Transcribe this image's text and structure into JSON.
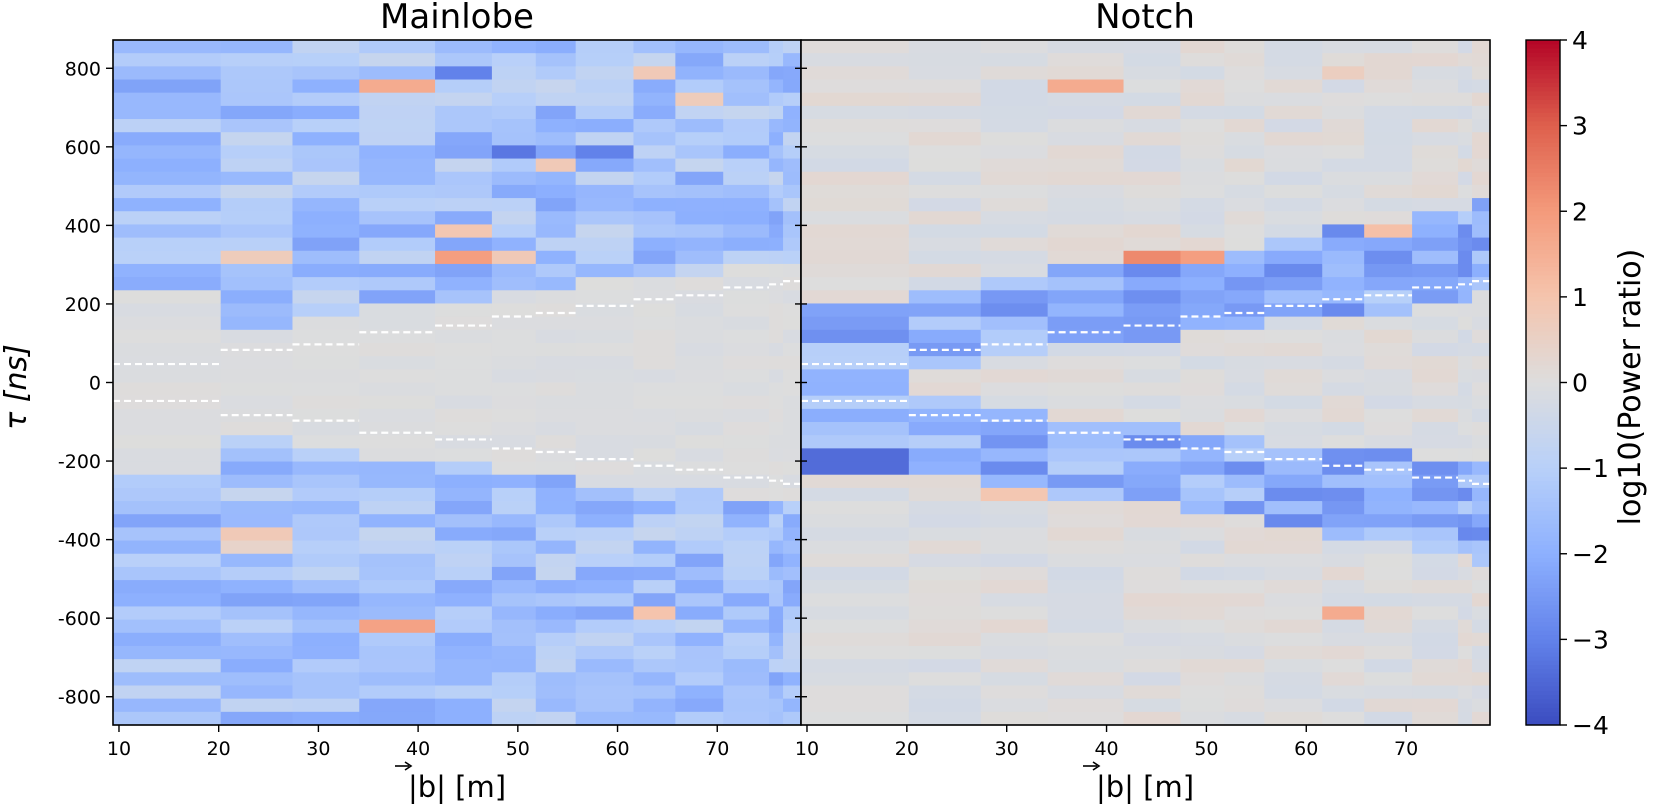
{
  "figure": {
    "panels": [
      {
        "title": "Mainlobe",
        "xlabel": "|b| [m]"
      },
      {
        "title": "Notch",
        "xlabel": "|b| [m]"
      }
    ],
    "ylabel": "τ [ns]",
    "colorbar": {
      "label": "log10(Power ratio)",
      "ticks": [
        "4",
        "3",
        "2",
        "1",
        "0",
        "−1",
        "−2",
        "−3",
        "−4"
      ]
    },
    "x_ticks": [
      "10",
      "20",
      "30",
      "40",
      "50",
      "60",
      "70"
    ],
    "y_ticks": [
      "800",
      "600",
      "400",
      "200",
      "0",
      "-200",
      "-400",
      "-600",
      "-800"
    ]
  },
  "chart_data": {
    "type": "heatmap",
    "colormap": "coolwarm",
    "color_range": [
      -4,
      4
    ],
    "x_range": [
      9.4,
      78.4
    ],
    "y_range": [
      -872,
      872
    ],
    "x_ticks": [
      10,
      20,
      30,
      40,
      50,
      60,
      70
    ],
    "y_ticks": [
      800,
      600,
      400,
      200,
      0,
      -200,
      -400,
      -600,
      -800
    ],
    "baseline_bin_edges": [
      9.4,
      20.2,
      27.4,
      34.1,
      41.7,
      47.4,
      51.8,
      55.8,
      61.6,
      65.8,
      70.6,
      75.2,
      76.6,
      78.4
    ],
    "horizon_delay_ns": [
      47,
      83,
      97,
      128,
      145,
      168,
      177,
      195,
      212,
      222,
      242,
      250,
      258
    ],
    "series": [
      {
        "name": "Mainlobe",
        "features": [
          {
            "x": 38,
            "tau": 760,
            "value": 1.6
          },
          {
            "x": 44,
            "tau": 330,
            "value": 1.9
          },
          {
            "x": 44,
            "tau": 380,
            "value": 0.9
          },
          {
            "x": 49,
            "tau": 330,
            "value": 0.8
          },
          {
            "x": 24,
            "tau": 330,
            "value": 0.7
          },
          {
            "x": 24,
            "tau": -375,
            "value": 0.8
          },
          {
            "x": 24,
            "tau": -425,
            "value": 0.4
          },
          {
            "x": 38,
            "tau": -630,
            "value": 1.8
          },
          {
            "x": 63,
            "tau": -580,
            "value": 1.0
          },
          {
            "x": 63,
            "tau": 800,
            "value": 0.8
          },
          {
            "x": 54,
            "tau": 560,
            "value": 0.8
          },
          {
            "x": 49,
            "tau": 600,
            "value": -3.2
          },
          {
            "x": 59,
            "tau": 590,
            "value": -3.0
          },
          {
            "x": 44,
            "tau": 780,
            "value": -3.0
          },
          {
            "x": 68,
            "tau": 720,
            "value": 0.7
          }
        ]
      },
      {
        "name": "Notch",
        "features": [
          {
            "x": 14,
            "tau": -200,
            "value": -3.4
          },
          {
            "x": 44,
            "tau": 320,
            "value": 2.3
          },
          {
            "x": 49,
            "tau": 320,
            "value": 1.9
          },
          {
            "x": 38,
            "tau": 760,
            "value": 1.6
          },
          {
            "x": 63,
            "tau": -580,
            "value": 1.6
          },
          {
            "x": 68,
            "tau": 390,
            "value": 1.1
          },
          {
            "x": 63,
            "tau": 800,
            "value": 0.6
          },
          {
            "x": 30,
            "tau": -280,
            "value": 0.9
          },
          {
            "x": 76,
            "tau": 300,
            "value": -2.8
          },
          {
            "x": 76,
            "tau": -280,
            "value": -2.8
          }
        ]
      }
    ]
  }
}
